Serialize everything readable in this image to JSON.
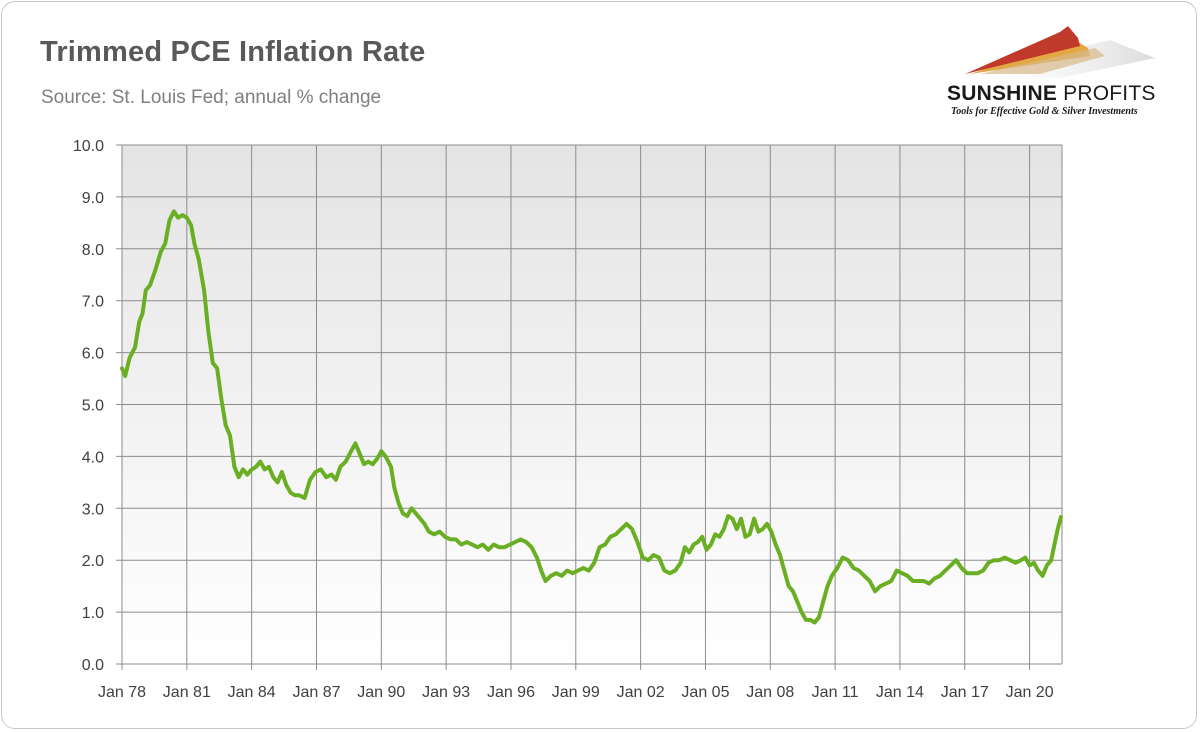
{
  "header": {
    "title": "Trimmed PCE Inflation Rate",
    "subtitle": "Source: St. Louis Fed; annual % change"
  },
  "logo": {
    "brand_bold": "SUNSHINE",
    "brand_light": "PROFITS",
    "tagline": "Tools for Effective Gold & Silver Investments",
    "colors": [
      "#c0392b",
      "#e0a23a",
      "#b5b5b5"
    ]
  },
  "chart_data": {
    "type": "line",
    "title": "Trimmed PCE Inflation Rate",
    "subtitle": "Source: St. Louis Fed; annual % change",
    "xlabel": "",
    "ylabel": "",
    "xlim": [
      1978.0,
      2021.5
    ],
    "ylim": [
      0,
      10
    ],
    "grid": true,
    "legend": "none",
    "y_ticks": [
      "0.0",
      "1.0",
      "2.0",
      "3.0",
      "4.0",
      "5.0",
      "6.0",
      "7.0",
      "8.0",
      "9.0",
      "10.0"
    ],
    "x_ticks": [
      {
        "t": 1978,
        "label": "Jan 78"
      },
      {
        "t": 1981,
        "label": "Jan 81"
      },
      {
        "t": 1984,
        "label": "Jan 84"
      },
      {
        "t": 1987,
        "label": "Jan 87"
      },
      {
        "t": 1990,
        "label": "Jan 90"
      },
      {
        "t": 1993,
        "label": "Jan 93"
      },
      {
        "t": 1996,
        "label": "Jan 96"
      },
      {
        "t": 1999,
        "label": "Jan 99"
      },
      {
        "t": 2002,
        "label": "Jan 02"
      },
      {
        "t": 2005,
        "label": "Jan 05"
      },
      {
        "t": 2008,
        "label": "Jan 08"
      },
      {
        "t": 2011,
        "label": "Jan 11"
      },
      {
        "t": 2014,
        "label": "Jan 14"
      },
      {
        "t": 2017,
        "label": "Jan 17"
      },
      {
        "t": 2020,
        "label": "Jan 20"
      }
    ],
    "series": [
      {
        "name": "Trimmed PCE inflation rate",
        "color": "#6aaf23",
        "points": [
          [
            1978.0,
            5.7
          ],
          [
            1978.15,
            5.55
          ],
          [
            1978.35,
            5.9
          ],
          [
            1978.6,
            6.1
          ],
          [
            1978.8,
            6.6
          ],
          [
            1978.95,
            6.75
          ],
          [
            1979.1,
            7.2
          ],
          [
            1979.3,
            7.3
          ],
          [
            1979.55,
            7.6
          ],
          [
            1979.8,
            7.95
          ],
          [
            1980.0,
            8.1
          ],
          [
            1980.2,
            8.55
          ],
          [
            1980.4,
            8.72
          ],
          [
            1980.6,
            8.6
          ],
          [
            1980.8,
            8.65
          ],
          [
            1981.0,
            8.6
          ],
          [
            1981.2,
            8.45
          ],
          [
            1981.35,
            8.1
          ],
          [
            1981.55,
            7.8
          ],
          [
            1981.8,
            7.2
          ],
          [
            1982.0,
            6.4
          ],
          [
            1982.2,
            5.8
          ],
          [
            1982.4,
            5.7
          ],
          [
            1982.6,
            5.1
          ],
          [
            1982.8,
            4.6
          ],
          [
            1983.0,
            4.4
          ],
          [
            1983.2,
            3.8
          ],
          [
            1983.4,
            3.6
          ],
          [
            1983.6,
            3.75
          ],
          [
            1983.8,
            3.65
          ],
          [
            1984.0,
            3.75
          ],
          [
            1984.2,
            3.8
          ],
          [
            1984.4,
            3.9
          ],
          [
            1984.6,
            3.75
          ],
          [
            1984.8,
            3.8
          ],
          [
            1985.0,
            3.6
          ],
          [
            1985.2,
            3.5
          ],
          [
            1985.4,
            3.7
          ],
          [
            1985.6,
            3.45
          ],
          [
            1985.8,
            3.3
          ],
          [
            1986.0,
            3.25
          ],
          [
            1986.2,
            3.25
          ],
          [
            1986.45,
            3.2
          ],
          [
            1986.7,
            3.55
          ],
          [
            1986.95,
            3.7
          ],
          [
            1987.2,
            3.75
          ],
          [
            1987.45,
            3.6
          ],
          [
            1987.7,
            3.65
          ],
          [
            1987.9,
            3.55
          ],
          [
            1988.1,
            3.8
          ],
          [
            1988.35,
            3.9
          ],
          [
            1988.6,
            4.1
          ],
          [
            1988.8,
            4.25
          ],
          [
            1989.0,
            4.05
          ],
          [
            1989.2,
            3.85
          ],
          [
            1989.4,
            3.9
          ],
          [
            1989.6,
            3.85
          ],
          [
            1989.8,
            3.95
          ],
          [
            1990.0,
            4.1
          ],
          [
            1990.2,
            4.0
          ],
          [
            1990.45,
            3.8
          ],
          [
            1990.6,
            3.4
          ],
          [
            1990.8,
            3.1
          ],
          [
            1991.0,
            2.9
          ],
          [
            1991.2,
            2.85
          ],
          [
            1991.4,
            3.0
          ],
          [
            1991.6,
            2.9
          ],
          [
            1991.8,
            2.8
          ],
          [
            1992.0,
            2.7
          ],
          [
            1992.2,
            2.55
          ],
          [
            1992.45,
            2.5
          ],
          [
            1992.7,
            2.55
          ],
          [
            1992.95,
            2.45
          ],
          [
            1993.2,
            2.4
          ],
          [
            1993.45,
            2.4
          ],
          [
            1993.7,
            2.3
          ],
          [
            1993.95,
            2.35
          ],
          [
            1994.2,
            2.3
          ],
          [
            1994.45,
            2.25
          ],
          [
            1994.7,
            2.3
          ],
          [
            1994.95,
            2.2
          ],
          [
            1995.2,
            2.3
          ],
          [
            1995.45,
            2.25
          ],
          [
            1995.7,
            2.25
          ],
          [
            1995.95,
            2.3
          ],
          [
            1996.2,
            2.35
          ],
          [
            1996.45,
            2.4
          ],
          [
            1996.7,
            2.35
          ],
          [
            1996.95,
            2.25
          ],
          [
            1997.2,
            2.05
          ],
          [
            1997.4,
            1.8
          ],
          [
            1997.6,
            1.6
          ],
          [
            1997.85,
            1.7
          ],
          [
            1998.1,
            1.75
          ],
          [
            1998.35,
            1.7
          ],
          [
            1998.6,
            1.8
          ],
          [
            1998.85,
            1.75
          ],
          [
            1999.1,
            1.8
          ],
          [
            1999.35,
            1.85
          ],
          [
            1999.6,
            1.8
          ],
          [
            1999.85,
            1.95
          ],
          [
            2000.1,
            2.25
          ],
          [
            2000.35,
            2.3
          ],
          [
            2000.6,
            2.45
          ],
          [
            2000.85,
            2.5
          ],
          [
            2001.1,
            2.6
          ],
          [
            2001.35,
            2.7
          ],
          [
            2001.6,
            2.6
          ],
          [
            2001.85,
            2.35
          ],
          [
            2002.1,
            2.05
          ],
          [
            2002.35,
            2.0
          ],
          [
            2002.6,
            2.1
          ],
          [
            2002.85,
            2.05
          ],
          [
            2003.1,
            1.8
          ],
          [
            2003.35,
            1.75
          ],
          [
            2003.6,
            1.8
          ],
          [
            2003.85,
            1.95
          ],
          [
            2004.05,
            2.25
          ],
          [
            2004.25,
            2.15
          ],
          [
            2004.45,
            2.3
          ],
          [
            2004.65,
            2.35
          ],
          [
            2004.85,
            2.45
          ],
          [
            2005.05,
            2.2
          ],
          [
            2005.25,
            2.3
          ],
          [
            2005.45,
            2.5
          ],
          [
            2005.65,
            2.45
          ],
          [
            2005.85,
            2.6
          ],
          [
            2006.05,
            2.85
          ],
          [
            2006.25,
            2.8
          ],
          [
            2006.45,
            2.6
          ],
          [
            2006.65,
            2.8
          ],
          [
            2006.85,
            2.45
          ],
          [
            2007.05,
            2.5
          ],
          [
            2007.25,
            2.8
          ],
          [
            2007.45,
            2.55
          ],
          [
            2007.65,
            2.6
          ],
          [
            2007.85,
            2.7
          ],
          [
            2008.05,
            2.55
          ],
          [
            2008.25,
            2.3
          ],
          [
            2008.45,
            2.1
          ],
          [
            2008.65,
            1.8
          ],
          [
            2008.85,
            1.5
          ],
          [
            2009.05,
            1.4
          ],
          [
            2009.25,
            1.2
          ],
          [
            2009.45,
            1.0
          ],
          [
            2009.65,
            0.85
          ],
          [
            2009.85,
            0.85
          ],
          [
            2010.05,
            0.8
          ],
          [
            2010.25,
            0.9
          ],
          [
            2010.45,
            1.2
          ],
          [
            2010.65,
            1.5
          ],
          [
            2010.85,
            1.7
          ],
          [
            2011.1,
            1.85
          ],
          [
            2011.35,
            2.05
          ],
          [
            2011.6,
            2.0
          ],
          [
            2011.85,
            1.85
          ],
          [
            2012.1,
            1.8
          ],
          [
            2012.35,
            1.7
          ],
          [
            2012.6,
            1.6
          ],
          [
            2012.85,
            1.4
          ],
          [
            2013.1,
            1.5
          ],
          [
            2013.35,
            1.55
          ],
          [
            2013.6,
            1.6
          ],
          [
            2013.85,
            1.8
          ],
          [
            2014.1,
            1.75
          ],
          [
            2014.35,
            1.7
          ],
          [
            2014.6,
            1.6
          ],
          [
            2014.85,
            1.6
          ],
          [
            2015.1,
            1.6
          ],
          [
            2015.35,
            1.55
          ],
          [
            2015.6,
            1.65
          ],
          [
            2015.85,
            1.7
          ],
          [
            2016.1,
            1.8
          ],
          [
            2016.35,
            1.9
          ],
          [
            2016.6,
            2.0
          ],
          [
            2016.85,
            1.85
          ],
          [
            2017.1,
            1.75
          ],
          [
            2017.35,
            1.75
          ],
          [
            2017.6,
            1.75
          ],
          [
            2017.85,
            1.8
          ],
          [
            2018.1,
            1.95
          ],
          [
            2018.35,
            2.0
          ],
          [
            2018.6,
            2.0
          ],
          [
            2018.85,
            2.05
          ],
          [
            2019.1,
            2.0
          ],
          [
            2019.35,
            1.95
          ],
          [
            2019.6,
            2.0
          ],
          [
            2019.8,
            2.05
          ],
          [
            2020.0,
            1.9
          ],
          [
            2020.2,
            1.95
          ],
          [
            2020.4,
            1.8
          ],
          [
            2020.6,
            1.7
          ],
          [
            2020.8,
            1.9
          ],
          [
            2021.0,
            2.0
          ],
          [
            2021.15,
            2.3
          ],
          [
            2021.3,
            2.6
          ],
          [
            2021.45,
            2.83
          ]
        ]
      }
    ]
  }
}
